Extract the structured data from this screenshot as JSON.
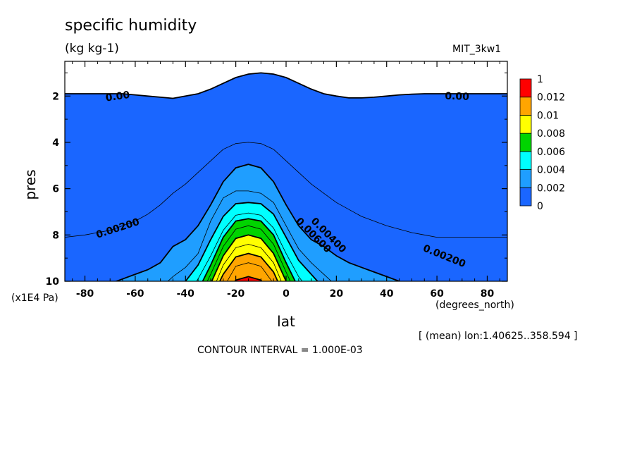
{
  "header": {
    "title": "specific humidity",
    "units": "(kg kg-1)",
    "dataset": "MIT_3kw1"
  },
  "footer": {
    "yunits": "(x1E4 Pa)",
    "xunits": "(degrees_north)",
    "region_note": "[ (mean) lon:1.40625..358.594 ]",
    "contour_interval": "CONTOUR INTERVAL = 1.000E-03"
  },
  "chart_data": {
    "type": "heatmap",
    "title": "specific humidity",
    "subtitle": "(kg kg-1)",
    "xlabel": "lat",
    "ylabel": "pres",
    "xlim": [
      -88,
      88
    ],
    "ylim": [
      10,
      0.5
    ],
    "x_ticks": [
      -80,
      -60,
      -40,
      -20,
      0,
      20,
      40,
      60,
      80
    ],
    "y_ticks": [
      2,
      4,
      6,
      8,
      10
    ],
    "x_tick_labels": [
      "-80",
      "-60",
      "-40",
      "-20",
      "0",
      "20",
      "40",
      "60",
      "80"
    ],
    "y_tick_labels": [
      "2",
      "4",
      "6",
      "8",
      "10"
    ],
    "contour_interval": 0.001,
    "colorbar": {
      "labels": [
        "0",
        "0.002",
        "0.004",
        "0.006",
        "0.008",
        "0.01",
        "0.012",
        "1"
      ],
      "colors": [
        "#1a66ff",
        "#1f9eff",
        "#00ffff",
        "#00d400",
        "#ffff00",
        "#ffa500",
        "#ff0000"
      ]
    },
    "contour_labels": [
      {
        "text": "0.00",
        "lat": -67,
        "pres": 2.0
      },
      {
        "text": "0.00",
        "lat": 68,
        "pres": 2.0
      },
      {
        "text": "0.00200",
        "lat": -67,
        "pres": 7.7
      },
      {
        "text": "0.00200",
        "lat": 63,
        "pres": 8.9
      },
      {
        "text": "0.00400",
        "lat": 17,
        "pres": 8.0
      },
      {
        "text": "0.00600",
        "lat": 11,
        "pres": 8.0
      }
    ],
    "levels": [
      {
        "value": 0.0,
        "color": "#1a66ff",
        "pres": [
          1.9,
          1.9,
          1.9,
          1.9,
          1.9,
          1.95,
          2.0,
          2.05,
          2.1,
          2.0,
          1.9,
          1.7,
          1.45,
          1.2,
          1.05,
          1.0,
          1.05,
          1.2,
          1.45,
          1.7,
          1.9,
          2.0,
          2.08,
          2.08,
          2.05,
          2.0,
          1.95,
          1.92,
          1.9,
          1.9
        ]
      },
      {
        "value": 0.001,
        "color": "#1a66ff",
        "pres": [
          8.1,
          8.0,
          7.9,
          7.8,
          7.6,
          7.4,
          7.1,
          6.7,
          6.2,
          5.8,
          5.3,
          4.8,
          4.3,
          4.05,
          4.0,
          4.05,
          4.3,
          4.8,
          5.3,
          5.8,
          6.2,
          6.6,
          6.9,
          7.2,
          7.4,
          7.6,
          7.75,
          7.9,
          8.0,
          8.1
        ]
      },
      {
        "value": 0.002,
        "color": "#1f9eff",
        "pres": [
          10.5,
          10.4,
          10.3,
          10.1,
          9.9,
          9.7,
          9.5,
          9.2,
          8.5,
          8.2,
          7.6,
          6.7,
          5.7,
          5.1,
          4.95,
          5.1,
          5.7,
          6.7,
          7.6,
          8.2,
          8.5,
          8.9,
          9.2,
          9.4,
          9.6,
          9.8,
          10.0,
          10.2,
          10.3,
          10.5
        ]
      },
      {
        "value": 0.003,
        "color": "#1f9eff",
        "pres": [
          11,
          11,
          11,
          11,
          11,
          11,
          10.8,
          10.3,
          9.8,
          9.4,
          8.8,
          7.4,
          6.4,
          6.1,
          6.1,
          6.2,
          6.6,
          7.6,
          8.6,
          9.2,
          9.7,
          10.2,
          10.6,
          11,
          11,
          11,
          11,
          11,
          11,
          11
        ]
      },
      {
        "value": 0.004,
        "color": "#00ffff",
        "pres": [
          11,
          11,
          11,
          11,
          11,
          11,
          11,
          11,
          10.5,
          10.0,
          9.3,
          8.2,
          7.2,
          6.65,
          6.6,
          6.65,
          7.1,
          8.1,
          9.1,
          9.7,
          10.3,
          10.9,
          11,
          11,
          11,
          11,
          11,
          11,
          11,
          11
        ]
      },
      {
        "value": 0.005,
        "color": "#00ffff",
        "pres": [
          11,
          11,
          11,
          11,
          11,
          11,
          11,
          11,
          11,
          10.7,
          9.9,
          8.9,
          7.8,
          7.15,
          7.05,
          7.15,
          7.7,
          8.8,
          9.8,
          10.5,
          11,
          11,
          11,
          11,
          11,
          11,
          11,
          11,
          11,
          11
        ]
      },
      {
        "value": 0.006,
        "color": "#00d400",
        "pres": [
          11,
          11,
          11,
          11,
          11,
          11,
          11,
          11,
          11,
          11,
          10.4,
          9.3,
          8.1,
          7.4,
          7.3,
          7.4,
          8.0,
          9.2,
          10.3,
          11,
          11,
          11,
          11,
          11,
          11,
          11,
          11,
          11,
          11,
          11
        ]
      },
      {
        "value": 0.007,
        "color": "#00d400",
        "pres": [
          11,
          11,
          11,
          11,
          11,
          11,
          11,
          11,
          11,
          11,
          11,
          9.7,
          8.5,
          7.75,
          7.6,
          7.75,
          8.4,
          9.6,
          11,
          11,
          11,
          11,
          11,
          11,
          11,
          11,
          11,
          11,
          11,
          11
        ]
      },
      {
        "value": 0.008,
        "color": "#ffff00",
        "pres": [
          11,
          11,
          11,
          11,
          11,
          11,
          11,
          11,
          11,
          11,
          11,
          10.1,
          8.9,
          8.15,
          8.0,
          8.15,
          8.8,
          10.0,
          11,
          11,
          11,
          11,
          11,
          11,
          11,
          11,
          11,
          11,
          11,
          11
        ]
      },
      {
        "value": 0.009,
        "color": "#ffff00",
        "pres": [
          11,
          11,
          11,
          11,
          11,
          11,
          11,
          11,
          11,
          11,
          11,
          10.6,
          9.3,
          8.55,
          8.4,
          8.55,
          9.2,
          10.5,
          11,
          11,
          11,
          11,
          11,
          11,
          11,
          11,
          11,
          11,
          11,
          11
        ]
      },
      {
        "value": 0.01,
        "color": "#ffa500",
        "pres": [
          11,
          11,
          11,
          11,
          11,
          11,
          11,
          11,
          11,
          11,
          11,
          11,
          9.7,
          8.95,
          8.8,
          8.95,
          9.6,
          11,
          11,
          11,
          11,
          11,
          11,
          11,
          11,
          11,
          11,
          11,
          11,
          11
        ]
      },
      {
        "value": 0.011,
        "color": "#ffa500",
        "pres": [
          11,
          11,
          11,
          11,
          11,
          11,
          11,
          11,
          11,
          11,
          11,
          11,
          10.3,
          9.35,
          9.2,
          9.35,
          10.1,
          11,
          11,
          11,
          11,
          11,
          11,
          11,
          11,
          11,
          11,
          11,
          11,
          11
        ]
      },
      {
        "value": 0.012,
        "color": "#ff0000",
        "pres": [
          11,
          11,
          11,
          11,
          11,
          11,
          11,
          11,
          11,
          11,
          11,
          11,
          11,
          9.95,
          9.8,
          9.95,
          11,
          11,
          11,
          11,
          11,
          11,
          11,
          11,
          11,
          11,
          11,
          11,
          11,
          11
        ]
      }
    ],
    "level_lats": [
      -88,
      -80,
      -75,
      -70,
      -65,
      -60,
      -55,
      -50,
      -45,
      -40,
      -35,
      -30,
      -25,
      -20,
      -15,
      -10,
      -5,
      0,
      5,
      10,
      15,
      20,
      25,
      30,
      35,
      40,
      45,
      50,
      55,
      60
    ]
  }
}
